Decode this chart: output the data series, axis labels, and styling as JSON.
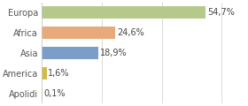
{
  "categories": [
    "Apolidi",
    "America",
    "Asia",
    "Africa",
    "Europa"
  ],
  "values": [
    0.1,
    1.6,
    18.9,
    24.6,
    54.7
  ],
  "labels": [
    "0,1%",
    "1,6%",
    "18,9%",
    "24,6%",
    "54,7%"
  ],
  "colors": [
    "#d4b84a",
    "#d4b84a",
    "#7b9ec9",
    "#e8aa7a",
    "#b5c98a"
  ],
  "background_color": "#ffffff",
  "label_fontsize": 7.0,
  "tick_fontsize": 7.0,
  "xlim": [
    0,
    68
  ]
}
